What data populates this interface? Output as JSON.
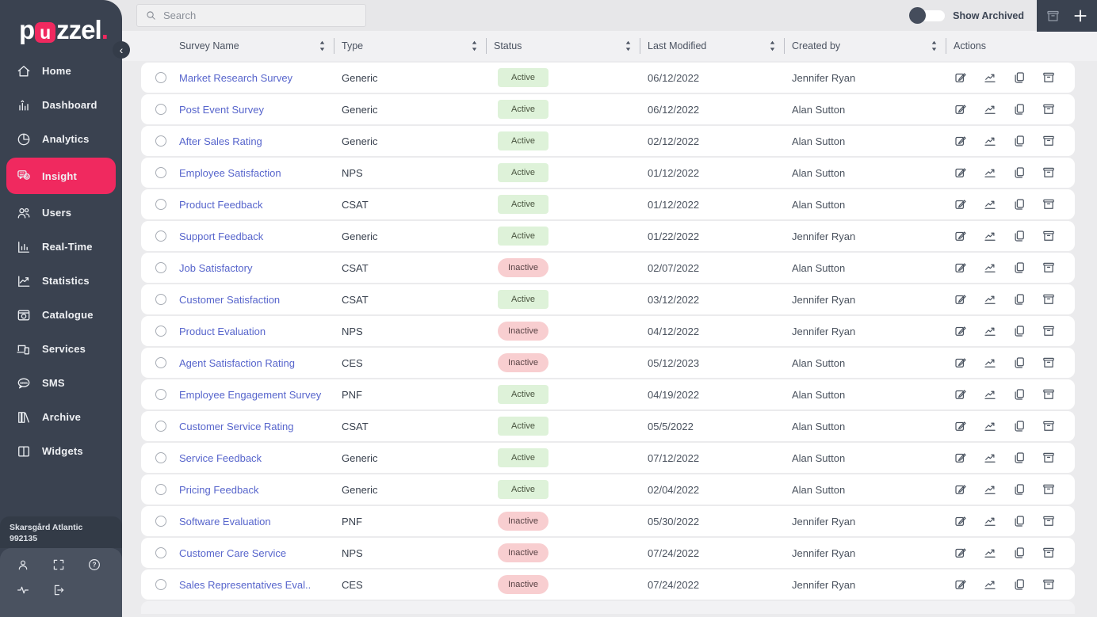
{
  "brand": {
    "logo_pre": "p",
    "logo_u": "u",
    "logo_post": "zzel",
    "logo_dot": ".",
    "accent_color": "#F0295F",
    "sidebar_color": "#3A4250"
  },
  "sidebar": {
    "collapse_glyph": "‹",
    "items": [
      {
        "label": "Home",
        "icon": "home-icon",
        "active": false
      },
      {
        "label": "Dashboard",
        "icon": "dashboard-icon",
        "active": false
      },
      {
        "label": "Analytics",
        "icon": "analytics-icon",
        "active": false
      },
      {
        "label": "Insight",
        "icon": "insight-icon",
        "active": true
      },
      {
        "label": "Users",
        "icon": "users-icon",
        "active": false
      },
      {
        "label": "Real-Time",
        "icon": "realtime-icon",
        "active": false
      },
      {
        "label": "Statistics",
        "icon": "statistics-icon",
        "active": false
      },
      {
        "label": "Catalogue",
        "icon": "catalogue-icon",
        "active": false
      },
      {
        "label": "Services",
        "icon": "services-icon",
        "active": false
      },
      {
        "label": "SMS",
        "icon": "sms-icon",
        "active": false
      },
      {
        "label": "Archive",
        "icon": "archive-books-icon",
        "active": false
      },
      {
        "label": "Widgets",
        "icon": "widgets-icon",
        "active": false
      }
    ],
    "tenant_name": "Skarsgård Atlantic",
    "tenant_id": "992135",
    "footer_icons_row1": [
      "profile-icon",
      "fullscreen-icon",
      "help-icon"
    ],
    "footer_icons_row2": [
      "activity-icon",
      "logout-icon"
    ]
  },
  "topbar": {
    "search_placeholder": "Search",
    "show_archived_label": "Show Archived",
    "toggle_state": "off"
  },
  "table": {
    "columns": [
      "Survey Name",
      "Type",
      "Status",
      "Last Modified",
      "Created by",
      "Actions"
    ],
    "status_colors": {
      "active_bg": "#DEF2D9",
      "inactive_bg": "#F8CED0"
    },
    "row_action_icons": [
      "edit-icon",
      "stats-icon",
      "copy-icon",
      "archive-box-icon"
    ],
    "rows": [
      {
        "name": "Market Research Survey",
        "type": "Generic",
        "status": "Active",
        "modified": "06/12/2022",
        "created_by": "Jennifer Ryan"
      },
      {
        "name": "Post Event Survey",
        "type": "Generic",
        "status": "Active",
        "modified": "06/12/2022",
        "created_by": "Alan Sutton"
      },
      {
        "name": "After Sales Rating",
        "type": "Generic",
        "status": "Active",
        "modified": "02/12/2022",
        "created_by": "Alan Sutton"
      },
      {
        "name": "Employee Satisfaction",
        "type": "NPS",
        "status": "Active",
        "modified": "01/12/2022",
        "created_by": "Alan Sutton"
      },
      {
        "name": "Product Feedback",
        "type": "CSAT",
        "status": "Active",
        "modified": "01/12/2022",
        "created_by": "Alan Sutton"
      },
      {
        "name": "Support Feedback",
        "type": "Generic",
        "status": "Active",
        "modified": "01/22/2022",
        "created_by": "Jennifer Ryan"
      },
      {
        "name": "Job Satisfactory",
        "type": "CSAT",
        "status": "Inactive",
        "modified": "02/07/2022",
        "created_by": "Alan Sutton"
      },
      {
        "name": "Customer Satisfaction",
        "type": "CSAT",
        "status": "Active",
        "modified": "03/12/2022",
        "created_by": "Jennifer Ryan"
      },
      {
        "name": "Product Evaluation",
        "type": "NPS",
        "status": "Inactive",
        "modified": "04/12/2022",
        "created_by": "Jennifer Ryan"
      },
      {
        "name": "Agent Satisfaction Rating",
        "type": "CES",
        "status": "Inactive",
        "modified": "05/12/2023",
        "created_by": "Alan Sutton"
      },
      {
        "name": "Employee Engagement Survey",
        "type": "PNF",
        "status": "Active",
        "modified": "04/19/2022",
        "created_by": "Alan Sutton"
      },
      {
        "name": "Customer Service Rating",
        "type": "CSAT",
        "status": "Active",
        "modified": "05/5/2022",
        "created_by": "Alan Sutton"
      },
      {
        "name": "Service Feedback",
        "type": "Generic",
        "status": "Active",
        "modified": "07/12/2022",
        "created_by": "Alan Sutton"
      },
      {
        "name": "Pricing Feedback",
        "type": "Generic",
        "status": "Active",
        "modified": "02/04/2022",
        "created_by": "Alan Sutton"
      },
      {
        "name": "Software Evaluation",
        "type": "PNF",
        "status": "Inactive",
        "modified": "05/30/2022",
        "created_by": "Jennifer Ryan"
      },
      {
        "name": "Customer Care Service",
        "type": "NPS",
        "status": "Inactive",
        "modified": "07/24/2022",
        "created_by": "Jennifer Ryan"
      },
      {
        "name": "Sales Representatives Eval..",
        "type": "CES",
        "status": "Inactive",
        "modified": "07/24/2022",
        "created_by": "Jennifer Ryan"
      }
    ]
  }
}
